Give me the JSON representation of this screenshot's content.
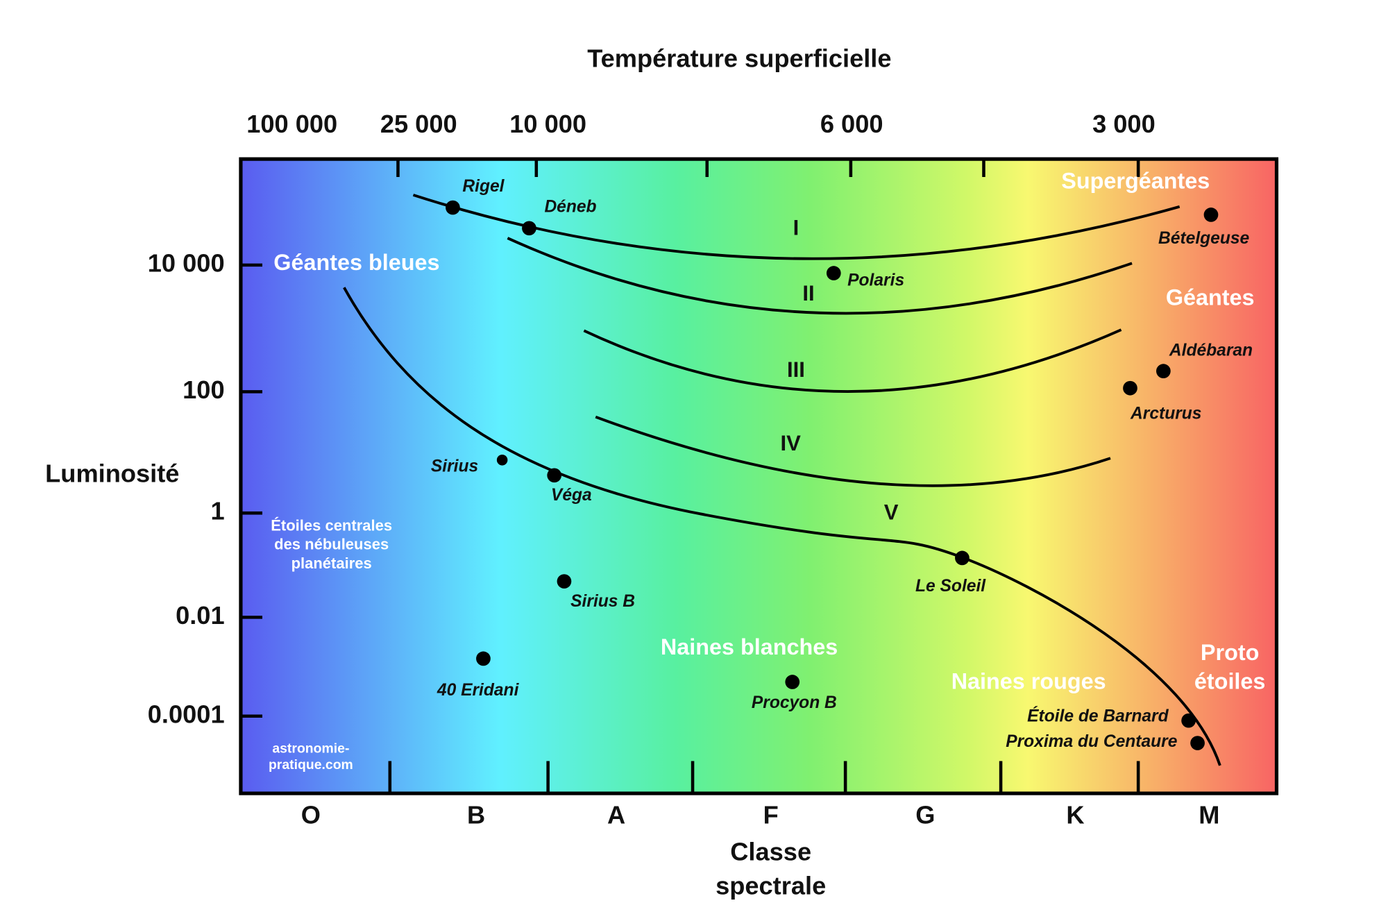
{
  "title": "Température superficielle",
  "temperature_labels": [
    "100 000",
    "25 000",
    "10 000",
    "6 000",
    "3 000"
  ],
  "luminosity_axis": {
    "title": "Luminosité",
    "ticks": [
      "10 000",
      "100",
      "1",
      "0.01",
      "0.0001"
    ]
  },
  "spectral_axis": {
    "title_lines": [
      "Classe",
      "spectrale"
    ],
    "classes": [
      "O",
      "B",
      "A",
      "F",
      "G",
      "K",
      "M"
    ]
  },
  "luminosity_classes": [
    "I",
    "II",
    "III",
    "IV",
    "V"
  ],
  "regions": {
    "supergiants": "Supergéantes",
    "blue_giants": "Géantes bleues",
    "giants": "Géantes",
    "white_dwarfs": "Naines blanches",
    "red_dwarfs": "Naines rouges",
    "protostars": [
      "Proto",
      "étoiles"
    ],
    "central_stars": [
      "Étoiles centrales",
      "des nébuleuses",
      "planétaires"
    ]
  },
  "stars": [
    "Rigel",
    "Déneb",
    "Bételgeuse",
    "Polaris",
    "Aldébaran",
    "Arcturus",
    "Sirius",
    "Véga",
    "Le Soleil",
    "Sirius B",
    "40 Eridani",
    "Procyon B",
    "Étoile de Barnard",
    "Proxima du Centaure"
  ],
  "credit": [
    "astronomie-",
    "pratique.com"
  ]
}
